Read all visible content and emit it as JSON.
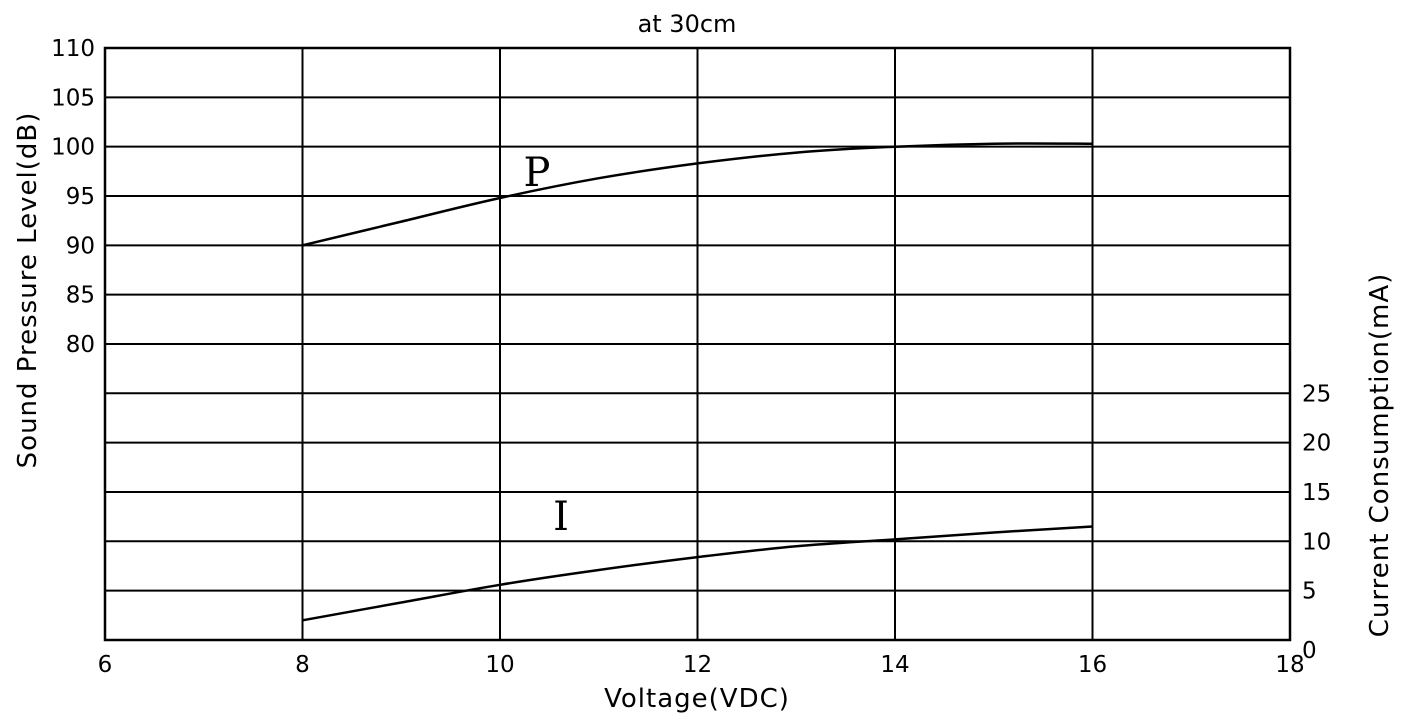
{
  "chart_data": {
    "type": "line",
    "title": "at 30cm",
    "xlabel": "Voltage(VDC)",
    "ylabel_left": "Sound Pressure Level(dB)",
    "ylabel_right": "Current Consumption(mA)",
    "xlim": [
      6,
      18
    ],
    "x_ticks": [
      "6",
      "8",
      "10",
      "12",
      "14",
      "16",
      "18"
    ],
    "y_left_ticks": [
      "110",
      "105",
      "100",
      "95",
      "90",
      "85",
      "80"
    ],
    "y_right_ticks": [
      "25",
      "20",
      "15",
      "10",
      "5",
      "0"
    ],
    "grid": true,
    "series": [
      {
        "name": "P",
        "axis": "left",
        "x": [
          8,
          9,
          10,
          11,
          12,
          13,
          14,
          15,
          16
        ],
        "y": [
          90,
          92.4,
          94.8,
          96.8,
          98.3,
          99.4,
          100,
          100.3,
          100.3
        ]
      },
      {
        "name": "I",
        "axis": "right",
        "x": [
          8,
          9,
          10,
          11,
          12,
          13,
          14,
          15,
          16
        ],
        "y": [
          2,
          3.8,
          5.6,
          7.1,
          8.4,
          9.5,
          10.2,
          10.9,
          11.5
        ]
      }
    ]
  }
}
